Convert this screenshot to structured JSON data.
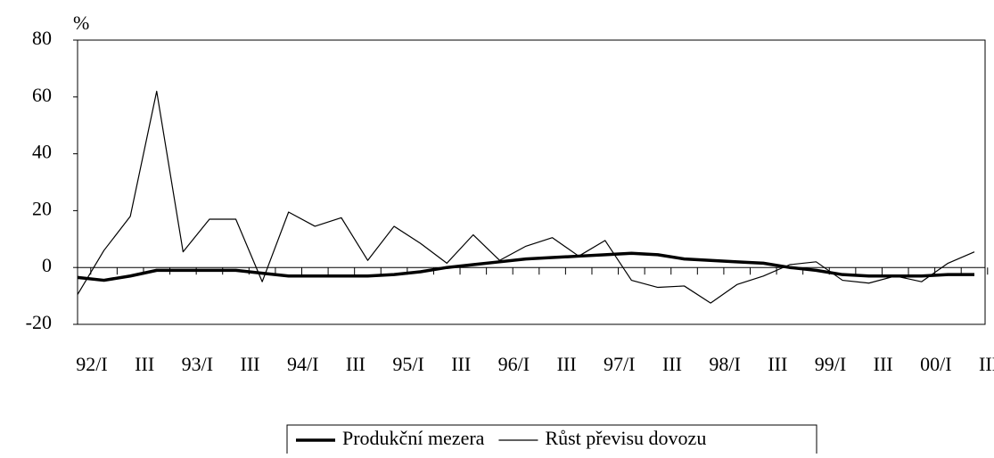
{
  "chart_data": {
    "type": "line",
    "y_label": "%",
    "categories": [
      "92/I",
      null,
      "III",
      null,
      "93/I",
      null,
      "III",
      null,
      "94/I",
      null,
      "III",
      null,
      "95/I",
      null,
      "III",
      null,
      "96/I",
      null,
      "III",
      null,
      "97/I",
      null,
      "III",
      null,
      "98/I",
      null,
      "III",
      null,
      "99/I",
      null,
      "III",
      null,
      "00/I",
      null,
      "III"
    ],
    "series": [
      {
        "name": "Produkční mezera",
        "color": "#000000",
        "width": 3.5,
        "values": [
          -3.5,
          -4.5,
          -3,
          -1,
          -1,
          -1,
          -1,
          -2,
          -3,
          -3,
          -3,
          -3,
          -2.5,
          -1.5,
          0,
          1,
          2,
          3,
          3.5,
          4,
          4.5,
          5,
          4.5,
          3,
          2.5,
          2,
          1.5,
          0,
          -1,
          -2.5,
          -3,
          -3,
          -3,
          -2.5,
          -2.5
        ]
      },
      {
        "name": "Růst převisu dovozu",
        "color": "#000000",
        "width": 1.2,
        "values": [
          -9.5,
          6,
          18,
          62,
          5.5,
          17,
          17,
          -5,
          19.5,
          14.5,
          17.5,
          2.5,
          14.5,
          8.5,
          1.5,
          11.5,
          2.5,
          7.5,
          10.5,
          4,
          9.5,
          -4.5,
          -7,
          -6.5,
          -12.5,
          -6,
          -3,
          1,
          2,
          -4.5,
          -5.5,
          -3,
          -5,
          1.5,
          5.5
        ]
      }
    ],
    "ylim": [
      -20,
      80
    ],
    "yticks": [
      -20,
      0,
      20,
      40,
      60,
      80
    ],
    "grid": false,
    "legend": "bottom"
  }
}
